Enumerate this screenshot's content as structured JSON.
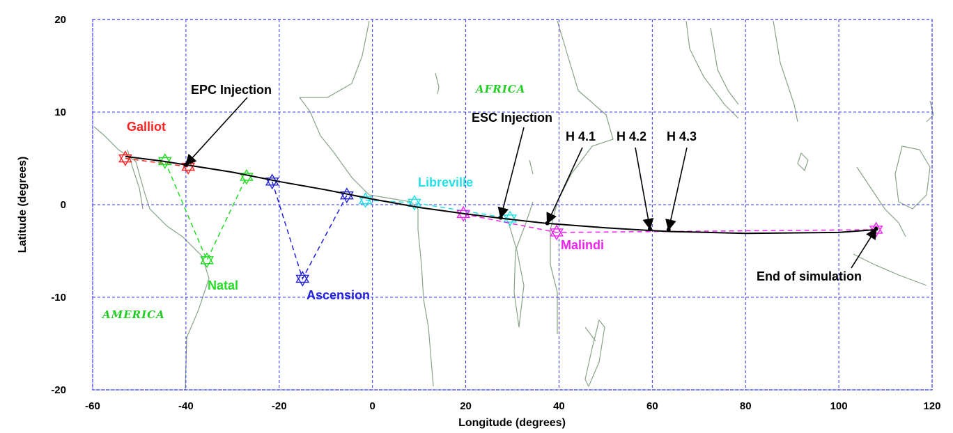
{
  "chart_data": {
    "type": "line",
    "title": "",
    "xlabel": "Longitude (degrees)",
    "ylabel": "Latitude (degrees)",
    "xlim": [
      -60,
      120
    ],
    "ylim": [
      -20,
      20
    ],
    "grid": true,
    "xticks": [
      -60,
      -40,
      -20,
      0,
      20,
      40,
      60,
      80,
      100,
      120
    ],
    "yticks": [
      -20,
      -10,
      0,
      10,
      20
    ],
    "trajectory": {
      "color": "#000000",
      "x": [
        -53,
        -45,
        -40,
        -30,
        -20,
        -10,
        0,
        10,
        20,
        28,
        37,
        50,
        60,
        64,
        80,
        100,
        108
      ],
      "y": [
        5.2,
        4.7,
        4.3,
        3.5,
        2.5,
        1.6,
        0.6,
        -0.3,
        -1.0,
        -1.5,
        -2.0,
        -2.5,
        -2.8,
        -2.9,
        -3.1,
        -3.0,
        -2.7
      ]
    },
    "events": [
      {
        "label": "EPC Injection",
        "x": -40,
        "y": 4.3
      },
      {
        "label": "ESC Injection",
        "x": 27.5,
        "y": -1.4
      },
      {
        "label": "H 4.1",
        "x": 37.5,
        "y": -2.0
      },
      {
        "label": "H 4.2",
        "x": 59.5,
        "y": -2.6
      },
      {
        "label": "H 4.3",
        "x": 63.5,
        "y": -2.7
      },
      {
        "label": "End of simulation",
        "x": 108,
        "y": -2.6
      }
    ],
    "stations": [
      {
        "name": "Galliot",
        "color": "#ff2020",
        "points": [
          [
            -53,
            5.0
          ],
          [
            -39.5,
            4.1
          ]
        ]
      },
      {
        "name": "Natal",
        "color": "#22dd22",
        "points": [
          [
            -44.5,
            4.7
          ],
          [
            -35.5,
            -6.0
          ],
          [
            -27,
            3.0
          ]
        ]
      },
      {
        "name": "Ascension",
        "color": "#2020dd",
        "points": [
          [
            -21.5,
            2.5
          ],
          [
            -15,
            -8.0
          ],
          [
            -5.5,
            1.0
          ]
        ]
      },
      {
        "name": "Libreville",
        "color": "#22e0e6",
        "points": [
          [
            -1.5,
            0.5
          ],
          [
            9,
            0.2
          ],
          [
            29.5,
            -1.5
          ]
        ]
      },
      {
        "name": "Malindi",
        "color": "#ee22ee",
        "points": [
          [
            19.5,
            -1.0
          ],
          [
            39.5,
            -3.0
          ],
          [
            108,
            -2.7
          ]
        ]
      }
    ],
    "regions": [
      {
        "label": "AFRICA",
        "color": "#22cc22"
      },
      {
        "label": "AMERICA",
        "color": "#22cc22"
      }
    ]
  }
}
